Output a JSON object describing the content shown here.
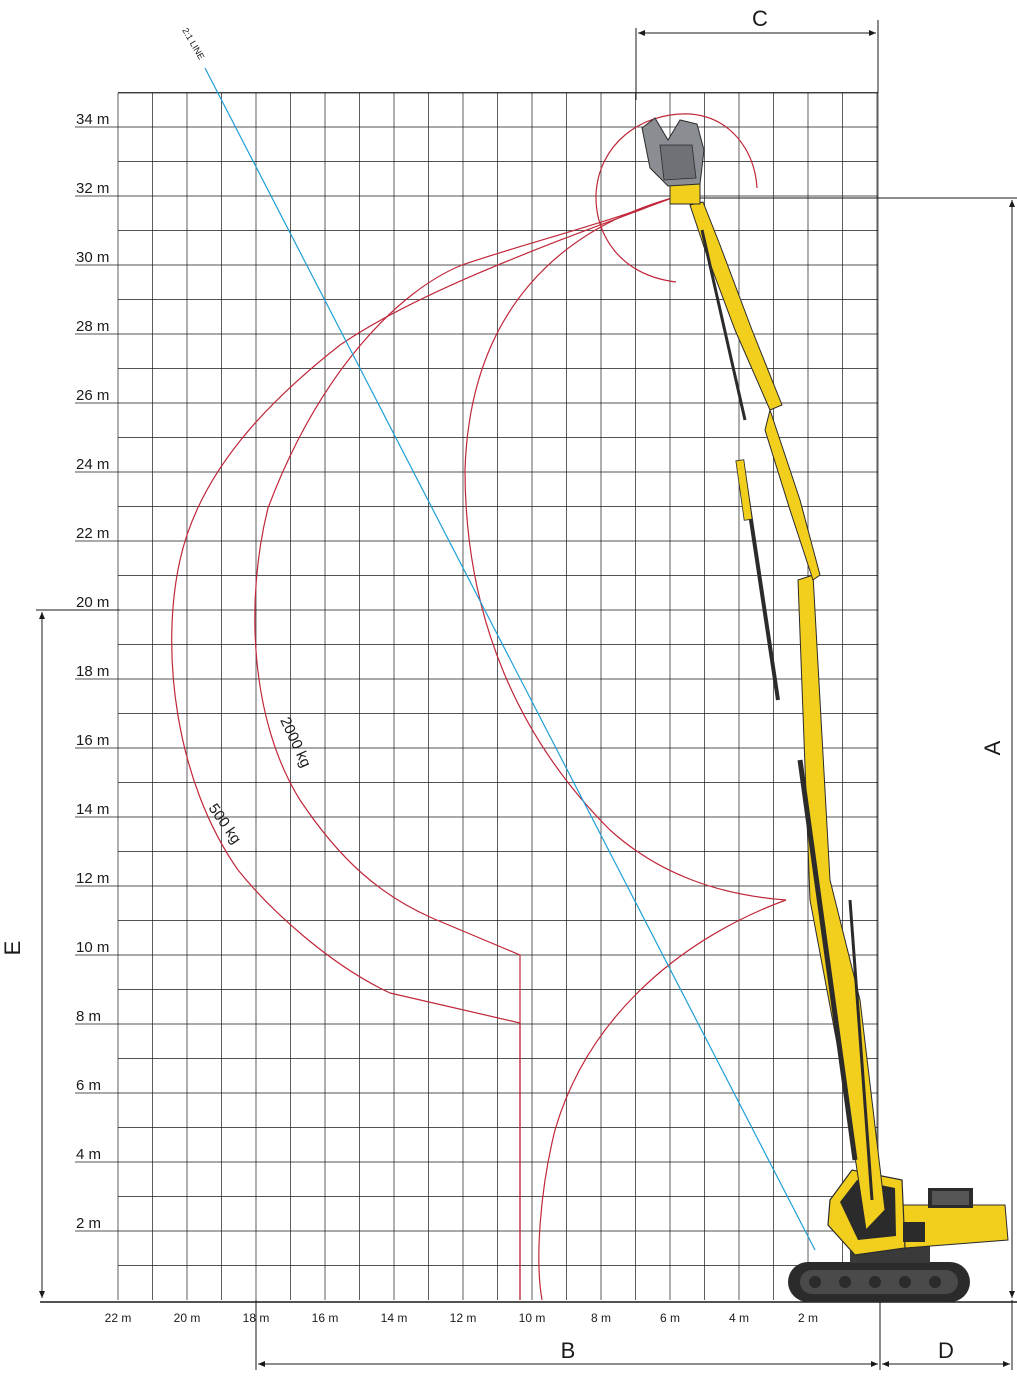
{
  "chart_data": {
    "type": "line",
    "y_ticks": [
      "2 m",
      "4 m",
      "6 m",
      "8 m",
      "10 m",
      "12 m",
      "14 m",
      "16 m",
      "18 m",
      "20 m",
      "22 m",
      "24 m",
      "26 m",
      "28 m",
      "30 m",
      "32 m",
      "34 m"
    ],
    "x_ticks": [
      "22 m",
      "20 m",
      "18 m",
      "16 m",
      "14 m",
      "12 m",
      "10 m",
      "8 m",
      "6 m",
      "4 m",
      "2 m"
    ],
    "dimension_labels": {
      "A": "A",
      "B": "B",
      "C": "C",
      "D": "D",
      "E": "E"
    },
    "reference_line_label": "2:1 LINE",
    "series": [
      {
        "name": "500 kg"
      },
      {
        "name": "2000 kg"
      }
    ],
    "colors": {
      "grid": "#1a1a1a",
      "curves": "#c0273a",
      "reference_line": "#1e9fd6",
      "machine_yellow": "#f2cf1d",
      "machine_dark": "#2b2b2b",
      "attachment_grey": "#8a8d91"
    }
  }
}
